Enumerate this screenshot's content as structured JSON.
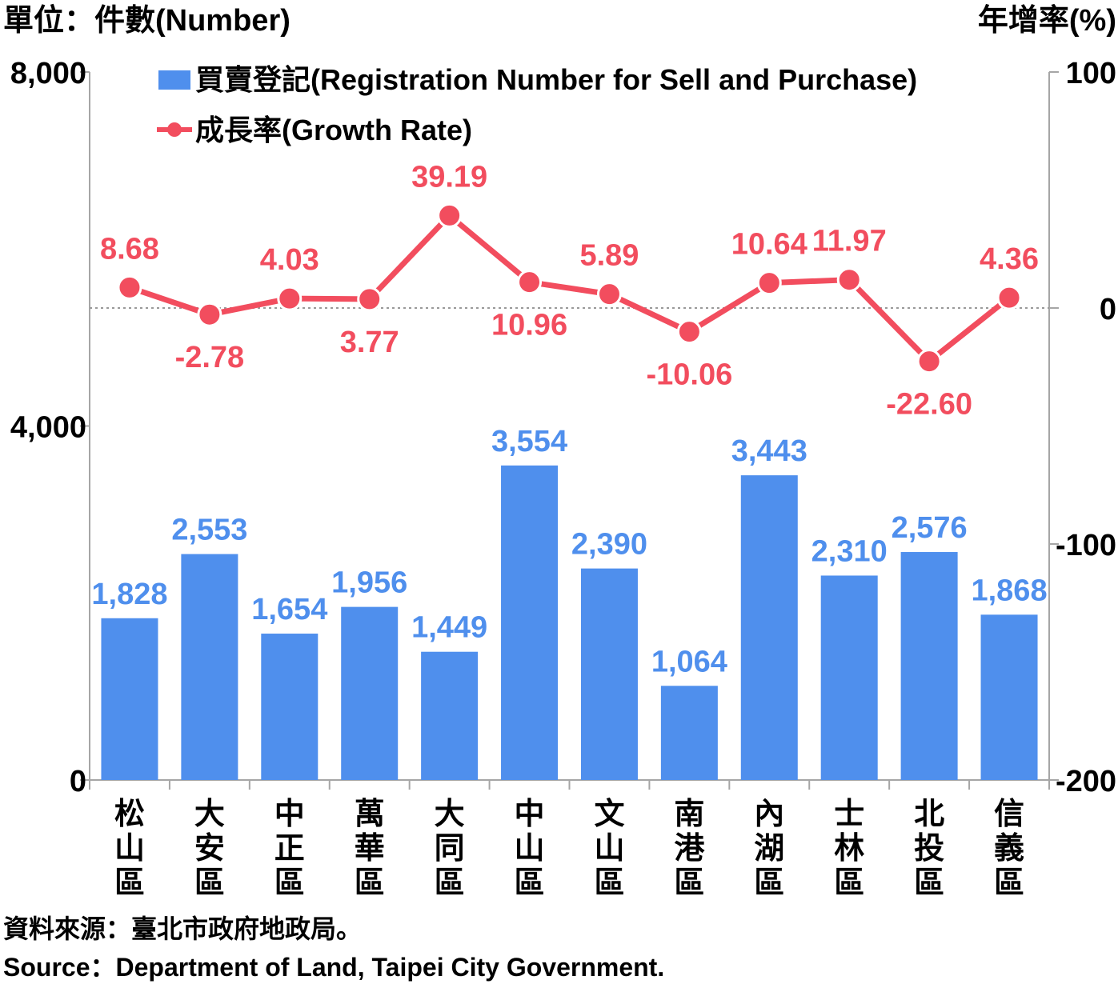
{
  "colors": {
    "bar": "#4f8fed",
    "line": "#f24d5e",
    "axis": "#a6a6a6",
    "zero": "#9a9a9a"
  },
  "labels": {
    "left_unit": "單位：件數(Number)",
    "right_unit": "年增率(%)",
    "legend_bar": "買賣登記(Registration Number for Sell and Purchase)",
    "legend_line": "成長率(Growth Rate)",
    "source_zh": "資料來源：臺北市政府地政局。",
    "source_en": "Source：Department of Land, Taipei City Government."
  },
  "chart_data": {
    "type": "bar",
    "categories": [
      "松山區",
      "大安區",
      "中正區",
      "萬華區",
      "大同區",
      "中山區",
      "文山區",
      "南港區",
      "內湖區",
      "士林區",
      "北投區",
      "信義區"
    ],
    "series": [
      {
        "name": "買賣登記(Registration Number for Sell and Purchase)",
        "type": "bar",
        "axis": "left",
        "values": [
          1828,
          2553,
          1654,
          1956,
          1449,
          3554,
          2390,
          1064,
          3443,
          2310,
          2576,
          1868
        ],
        "labels": [
          "1,828",
          "2,553",
          "1,654",
          "1,956",
          "1,449",
          "3,554",
          "2,390",
          "1,064",
          "3,443",
          "2,310",
          "2,576",
          "1,868"
        ]
      },
      {
        "name": "成長率(Growth Rate)",
        "type": "line",
        "axis": "right",
        "values": [
          8.68,
          -2.78,
          4.03,
          3.77,
          39.19,
          10.96,
          5.89,
          -10.06,
          10.64,
          11.97,
          -22.6,
          4.36
        ],
        "labels": [
          "8.68",
          "-2.78",
          "4.03",
          "3.77",
          "39.19",
          "10.96",
          "5.89",
          "-10.06",
          "10.64",
          "11.97",
          "-22.60",
          "4.36"
        ]
      }
    ],
    "left_axis": {
      "min": 0,
      "max": 8000,
      "ticks": [
        0,
        4000,
        8000
      ],
      "tick_labels": [
        "0",
        "4,000",
        "8,000"
      ]
    },
    "right_axis": {
      "min": -200,
      "max": 100,
      "ticks": [
        -200,
        -100,
        0,
        100
      ],
      "tick_labels": [
        "-200",
        "-100",
        "0",
        "100"
      ]
    },
    "zero_line": true,
    "grid": false,
    "legend_position": "top-left"
  }
}
